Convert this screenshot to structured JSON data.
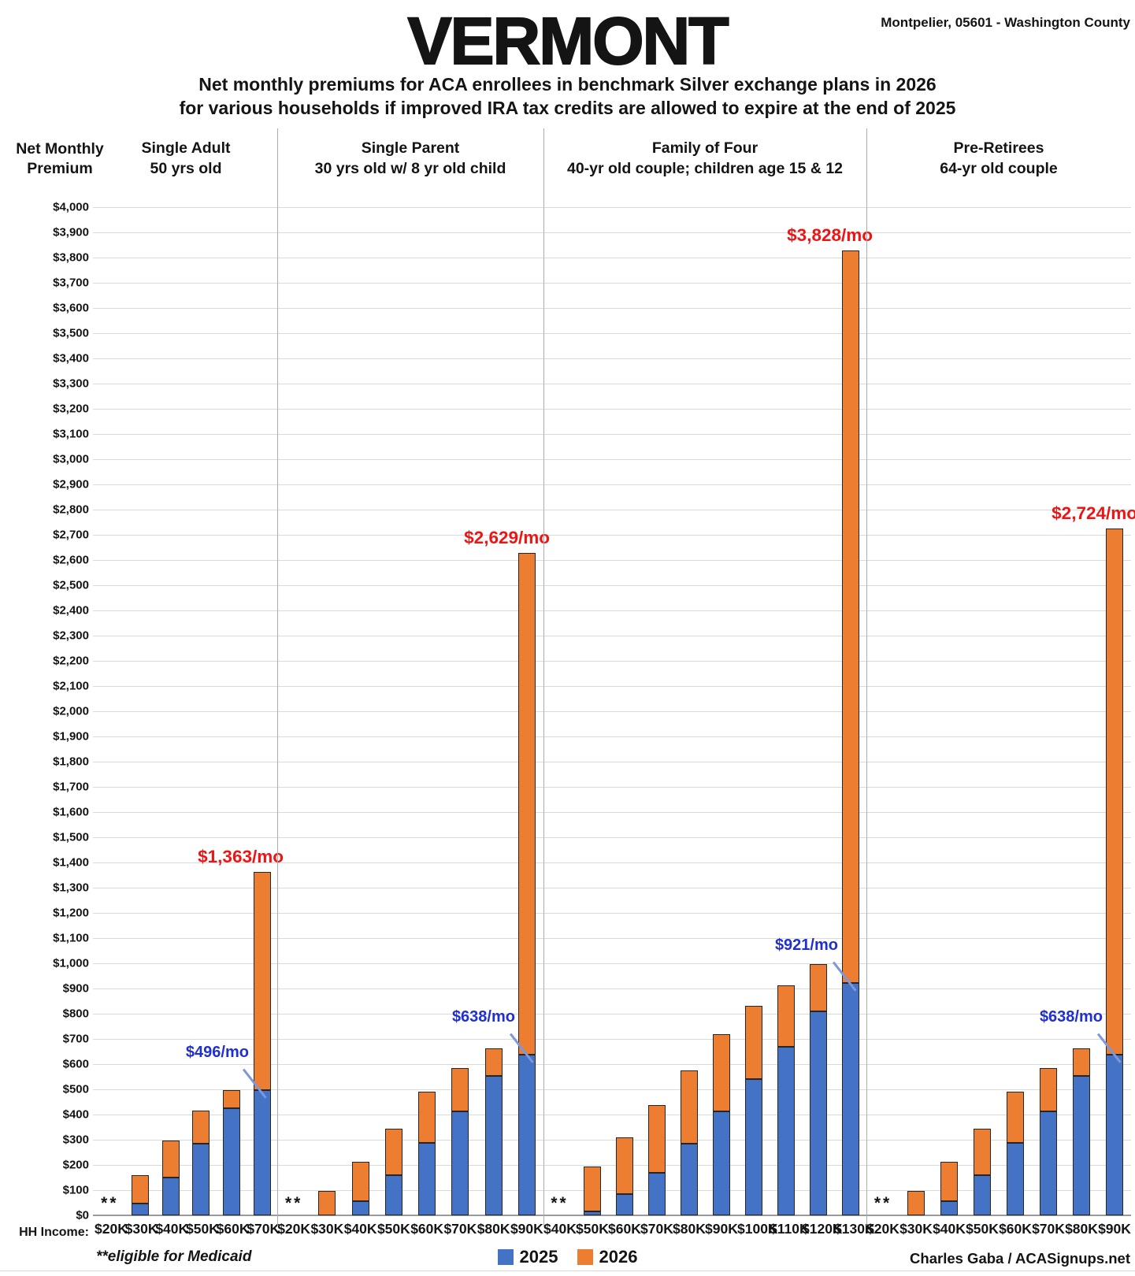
{
  "header": {
    "title": "VERMONT",
    "location": "Montpelier, 05601 - Washington County",
    "subtitle_line1": "Net monthly premiums for ACA enrollees in benchmark Silver exchange plans in 2026",
    "subtitle_line2": "for various households if improved IRA tax credits are allowed to expire at the end of 2025"
  },
  "chart_data": {
    "type": "bar",
    "stacked": true,
    "ylabel_line1": "Net Monthly",
    "ylabel_line2": "Premium",
    "ylim": [
      0,
      4000
    ],
    "ytick_step": 100,
    "ytick_format": "$#,##0",
    "grid": true,
    "xaxis_label": "HH Income:",
    "medicaid_marker": "**",
    "footnote": "**eligible for Medicaid",
    "credit": "Charles Gaba / ACASignups.net",
    "legend": {
      "position": "bottom-center",
      "series": [
        {
          "name": "2025",
          "color": "#4472C4"
        },
        {
          "name": "2026",
          "color": "#ED7D31"
        }
      ]
    },
    "colors": {
      "bar_2025": "#4472C4",
      "bar_2026": "#ED7D31",
      "bar_border": "#262626",
      "annotation_2025_text": "#2030D0",
      "annotation_2026_text": "#EE1414",
      "leader_line": "#7D97D9",
      "gridline": "#DADADA",
      "divider": "#ACACAC"
    },
    "groups": [
      {
        "title_line1": "Single Adult",
        "title_line2": "50 yrs old",
        "bars": [
          {
            "income": "$20K",
            "medicaid": true
          },
          {
            "income": "$30K",
            "v2025": 48,
            "v2026": 160
          },
          {
            "income": "$40K",
            "v2025": 150,
            "v2026": 297
          },
          {
            "income": "$50K",
            "v2025": 283,
            "v2026": 417
          },
          {
            "income": "$60K",
            "v2025": 425,
            "v2026": 498
          },
          {
            "income": "$70K",
            "v2025": 496,
            "v2026": 1363,
            "label_2025": "$496/mo",
            "label_2026": "$1,363/mo"
          }
        ]
      },
      {
        "title_line1": "Single Parent",
        "title_line2": "30 yrs old w/ 8 yr old child",
        "bars": [
          {
            "income": "$20K",
            "medicaid": true
          },
          {
            "income": "$30K",
            "v2025": 0,
            "v2026": 97
          },
          {
            "income": "$40K",
            "v2025": 55,
            "v2026": 212
          },
          {
            "income": "$50K",
            "v2025": 158,
            "v2026": 345
          },
          {
            "income": "$60K",
            "v2025": 287,
            "v2026": 490
          },
          {
            "income": "$70K",
            "v2025": 413,
            "v2026": 583
          },
          {
            "income": "$80K",
            "v2025": 553,
            "v2026": 663
          },
          {
            "income": "$90K",
            "v2025": 638,
            "v2026": 2629,
            "label_2025": "$638/mo",
            "label_2026": "$2,629/mo"
          }
        ]
      },
      {
        "title_line1": "Family of Four",
        "title_line2": "40-yr old couple; children age 15 & 12",
        "bars": [
          {
            "income": "$40K",
            "medicaid": true
          },
          {
            "income": "$50K",
            "v2025": 15,
            "v2026": 195
          },
          {
            "income": "$60K",
            "v2025": 85,
            "v2026": 310
          },
          {
            "income": "$70K",
            "v2025": 170,
            "v2026": 437
          },
          {
            "income": "$80K",
            "v2025": 285,
            "v2026": 575
          },
          {
            "income": "$90K",
            "v2025": 413,
            "v2026": 718
          },
          {
            "income": "$100K",
            "v2025": 540,
            "v2026": 830
          },
          {
            "income": "$110K",
            "v2025": 670,
            "v2026": 913
          },
          {
            "income": "$120K",
            "v2025": 810,
            "v2026": 996
          },
          {
            "income": "$130K",
            "v2025": 921,
            "v2026": 3828,
            "label_2025": "$921/mo",
            "label_2026": "$3,828/mo"
          }
        ]
      },
      {
        "title_line1": "Pre-Retirees",
        "title_line2": "64-yr old couple",
        "bars": [
          {
            "income": "$20K",
            "medicaid": true
          },
          {
            "income": "$30K",
            "v2025": 0,
            "v2026": 97
          },
          {
            "income": "$40K",
            "v2025": 55,
            "v2026": 212
          },
          {
            "income": "$50K",
            "v2025": 158,
            "v2026": 345
          },
          {
            "income": "$60K",
            "v2025": 287,
            "v2026": 490
          },
          {
            "income": "$70K",
            "v2025": 413,
            "v2026": 583
          },
          {
            "income": "$80K",
            "v2025": 553,
            "v2026": 663
          },
          {
            "income": "$90K",
            "v2025": 638,
            "v2026": 2724,
            "label_2025": "$638/mo",
            "label_2026": "$2,724/mo"
          }
        ]
      }
    ]
  }
}
